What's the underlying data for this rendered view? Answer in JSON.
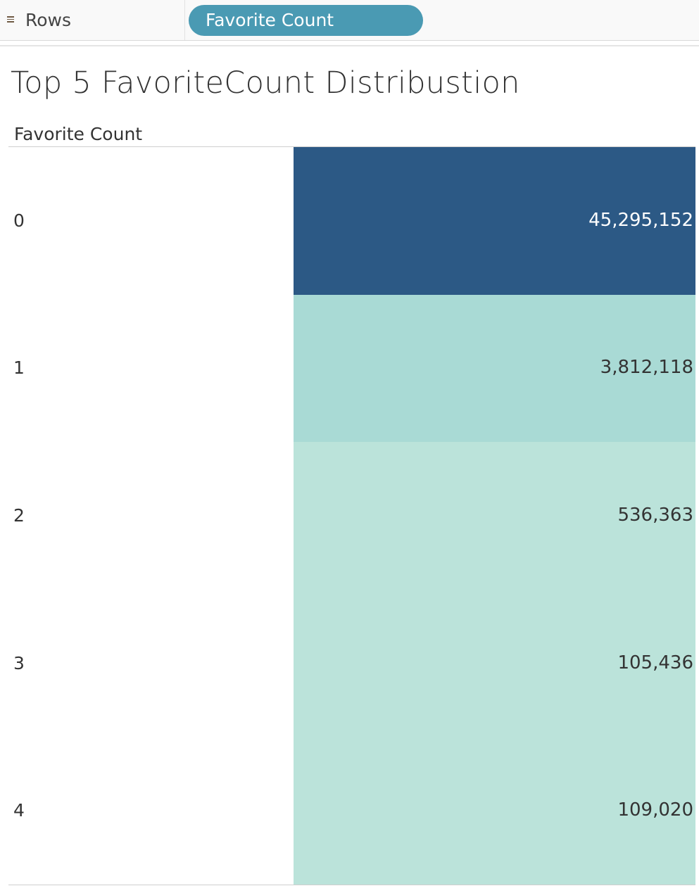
{
  "shelf": {
    "label": "Rows",
    "icon": "list-icon",
    "pill_label": "Favorite Count",
    "pill_color": "#4a9ab3"
  },
  "title": "Top 5 FavoriteCount Distribustion",
  "chart_data": {
    "type": "heatmap",
    "title": "Top 5 FavoriteCount Distribustion",
    "row_header": "Favorite Count",
    "rows": [
      {
        "category": "0",
        "value": 45295152,
        "label": "45,295,152",
        "color": "#2c5985",
        "text_color": "#ffffff"
      },
      {
        "category": "1",
        "value": 3812118,
        "label": "3,812,118",
        "color": "#a9dad5",
        "text_color": "#333333"
      },
      {
        "category": "2",
        "value": 536363,
        "label": "536,363",
        "color": "#bbe3da",
        "text_color": "#333333"
      },
      {
        "category": "3",
        "value": 105436,
        "label": "105,436",
        "color": "#bbe3da",
        "text_color": "#333333"
      },
      {
        "category": "4",
        "value": 109020,
        "label": "109,020",
        "color": "#bbe3da",
        "text_color": "#333333"
      }
    ]
  }
}
